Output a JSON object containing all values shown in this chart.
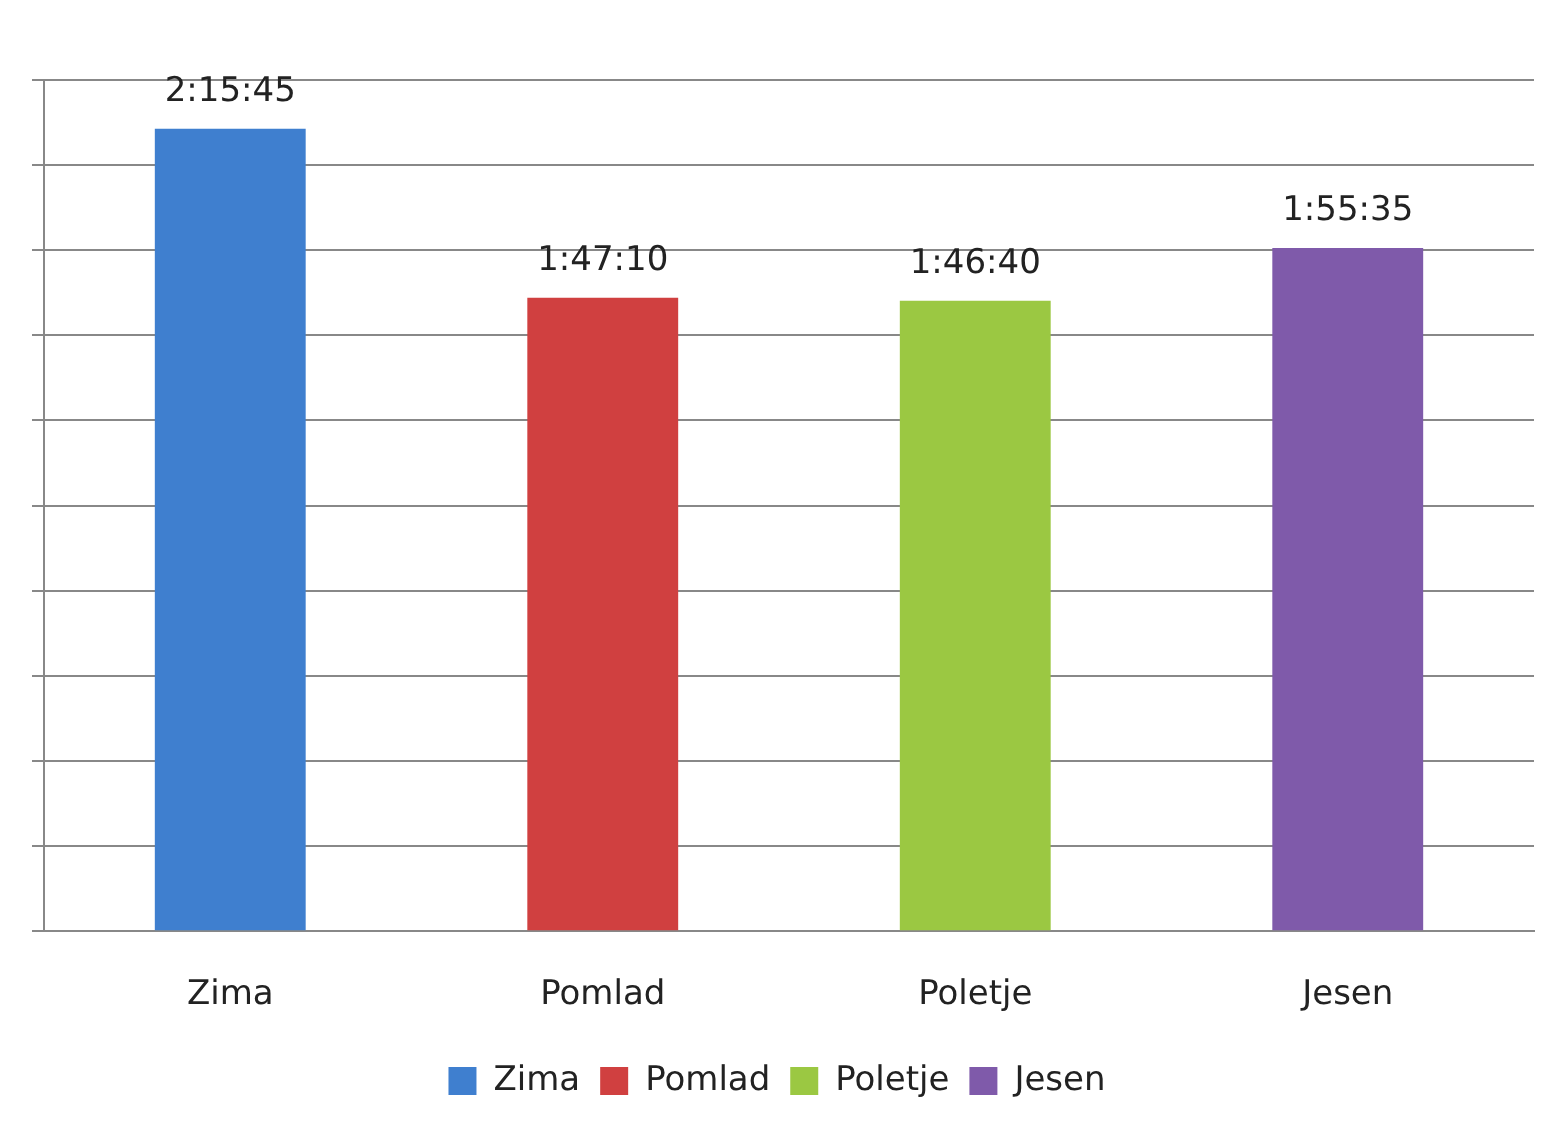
{
  "chart_data": {
    "type": "bar",
    "categories": [
      "Zima",
      "Pomlad",
      "Poletje",
      "Jesen"
    ],
    "series": [
      {
        "name": "Zima",
        "color": "#3f7fcf",
        "values": [
          8145,
          null,
          null,
          null
        ],
        "value_labels": [
          "2:15:45",
          null,
          null,
          null
        ]
      },
      {
        "name": "Pomlad",
        "color": "#d04040",
        "values": [
          null,
          6430,
          null,
          null
        ],
        "value_labels": [
          null,
          "1:47:10",
          null,
          null
        ]
      },
      {
        "name": "Poletje",
        "color": "#9bc842",
        "values": [
          null,
          null,
          6400,
          null
        ],
        "value_labels": [
          null,
          null,
          "1:46:40",
          null
        ]
      },
      {
        "name": "Jesen",
        "color": "#7f5aaa",
        "values": [
          null,
          null,
          null,
          6935
        ],
        "value_labels": [
          null,
          null,
          null,
          "1:55:35"
        ]
      }
    ],
    "ylim": [
      0,
      8640
    ],
    "yticks": [
      {
        "value": 0,
        "label": null
      },
      {
        "value": 864,
        "label": null
      },
      {
        "value": 1728,
        "label": null
      },
      {
        "value": 2592,
        "label": null
      },
      {
        "value": 3456,
        "label": null
      },
      {
        "value": 4320,
        "label": null
      },
      {
        "value": 5184,
        "label": null
      },
      {
        "value": 6048,
        "label": null
      },
      {
        "value": 6912,
        "label": null
      },
      {
        "value": 7776,
        "label": null
      },
      {
        "value": 8640,
        "label": null
      }
    ],
    "tick_labels": "x",
    "grid": "y",
    "legend": "bottom"
  }
}
